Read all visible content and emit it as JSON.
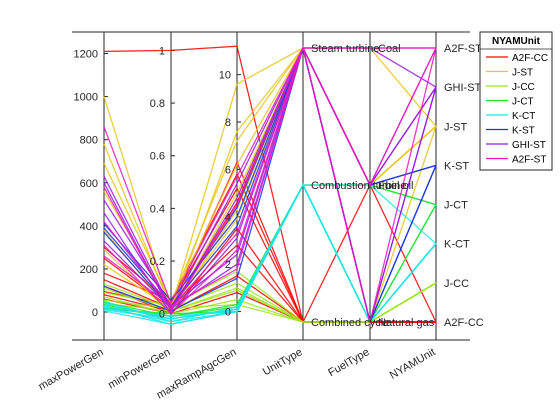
{
  "chart_data": {
    "type": "parallel_coordinates",
    "title": "",
    "coordinates": [
      "maxPowerGen",
      "minPowerGen",
      "maxRampAgcGen",
      "UnitType",
      "FuelType",
      "NYAMUnit"
    ],
    "axes": [
      {
        "name": "maxPowerGen",
        "kind": "numeric",
        "range": [
          -130,
          1300
        ],
        "ticks": [
          0,
          200,
          400,
          600,
          800,
          1000,
          1200
        ]
      },
      {
        "name": "minPowerGen",
        "kind": "numeric",
        "range": [
          -0.1,
          1.07
        ],
        "ticks": [
          0,
          0.2,
          0.4,
          0.6,
          0.8,
          1
        ]
      },
      {
        "name": "maxRampAgcGen",
        "kind": "numeric",
        "range": [
          -1.2,
          11.8
        ],
        "ticks": [
          0,
          2,
          4,
          6,
          8,
          10
        ]
      },
      {
        "name": "UnitType",
        "kind": "categorical",
        "categories": [
          "Combined cycle",
          "Combustion turbine",
          "Steam turbine"
        ]
      },
      {
        "name": "FuelType",
        "kind": "categorical",
        "categories": [
          "Natural gas",
          "Fuel oil",
          "Coal"
        ]
      },
      {
        "name": "NYAMUnit",
        "kind": "categorical",
        "categories": [
          "A2F-CC",
          "J-CC",
          "K-CT",
          "J-CT",
          "K-ST",
          "J-ST",
          "GHI-ST",
          "A2F-ST"
        ]
      }
    ],
    "legend": {
      "title": "NYAMUnit",
      "position": "top-right"
    },
    "groups": [
      {
        "name": "A2F-CC",
        "color": "#ff0000",
        "lines": [
          [
            1210,
            1.0,
            11.2,
            "Combined cycle",
            "Natural gas",
            "A2F-CC"
          ],
          [
            180,
            0.05,
            5.8,
            "Combined cycle",
            "Natural gas",
            "A2F-CC"
          ],
          [
            150,
            0.02,
            6.3,
            "Combined cycle",
            "Fuel oil",
            "A2F-CC"
          ],
          [
            120,
            0.0,
            3.5,
            "Combined cycle",
            "Natural gas",
            "A2F-CC"
          ],
          [
            95,
            0.03,
            2.8,
            "Combined cycle",
            "Natural gas",
            "A2F-CC"
          ],
          [
            80,
            0.01,
            1.5,
            "Combined cycle",
            "Natural gas",
            "A2F-CC"
          ],
          [
            60,
            0.0,
            0.8,
            "Combined cycle",
            "Natural gas",
            "A2F-CC"
          ],
          [
            250,
            0.02,
            4.6,
            "Steam turbine",
            "Natural gas",
            "A2F-CC"
          ],
          [
            300,
            0.04,
            5.2,
            "Combined cycle",
            "Natural gas",
            "A2F-CC"
          ]
        ]
      },
      {
        "name": "J-ST",
        "color": "#e6c619",
        "lines": [
          [
            1000,
            0.01,
            7.6,
            "Steam turbine",
            "Coal",
            "J-ST"
          ],
          [
            780,
            0.02,
            9.6,
            "Steam turbine",
            "Fuel oil",
            "J-ST"
          ],
          [
            560,
            0.03,
            6.2,
            "Steam turbine",
            "Fuel oil",
            "J-ST"
          ],
          [
            380,
            0.01,
            5.0,
            "Steam turbine",
            "Fuel oil",
            "J-ST"
          ],
          [
            290,
            0.0,
            4.3,
            "Steam turbine",
            "Fuel oil",
            "J-ST"
          ],
          [
            220,
            0.02,
            3.9,
            "Steam turbine",
            "Fuel oil",
            "J-ST"
          ],
          [
            690,
            0.04,
            7.2,
            "Steam turbine",
            "Natural gas",
            "J-ST"
          ]
        ]
      },
      {
        "name": "J-CC",
        "color": "#99e619",
        "lines": [
          [
            130,
            0.02,
            1.2,
            "Combined cycle",
            "Natural gas",
            "J-CC"
          ],
          [
            110,
            0.01,
            0.9,
            "Combined cycle",
            "Natural gas",
            "J-CC"
          ],
          [
            90,
            0.03,
            1.7,
            "Combined cycle",
            "Natural gas",
            "J-CC"
          ],
          [
            70,
            0.0,
            0.5,
            "Combined cycle",
            "Natural gas",
            "J-CC"
          ],
          [
            55,
            0.02,
            0.3,
            "Combined cycle",
            "Natural gas",
            "J-CC"
          ],
          [
            40,
            0.01,
            1.0,
            "Combined cycle",
            "Natural gas",
            "J-CC"
          ]
        ]
      },
      {
        "name": "J-CT",
        "color": "#19e633",
        "lines": [
          [
            45,
            -0.01,
            0.2,
            "Combustion turbine",
            "Fuel oil",
            "J-CT"
          ],
          [
            35,
            -0.02,
            0.1,
            "Combustion turbine",
            "Natural gas",
            "J-CT"
          ],
          [
            20,
            -0.01,
            0.3,
            "Combustion turbine",
            "Natural gas",
            "J-CT"
          ],
          [
            15,
            0.0,
            0.0,
            "Combustion turbine",
            "Fuel oil",
            "J-CT"
          ]
        ]
      },
      {
        "name": "K-CT",
        "color": "#19e6e6",
        "lines": [
          [
            50,
            -0.03,
            0.0,
            "Combustion turbine",
            "Natural gas",
            "K-CT"
          ],
          [
            40,
            -0.02,
            0.1,
            "Combustion turbine",
            "Natural gas",
            "K-CT"
          ],
          [
            30,
            -0.04,
            0.0,
            "Combustion turbine",
            "Natural gas",
            "K-CT"
          ],
          [
            20,
            -0.03,
            0.2,
            "Combustion turbine",
            "Fuel oil",
            "K-CT"
          ],
          [
            10,
            -0.02,
            0.1,
            "Combustion turbine",
            "Natural gas",
            "K-CT"
          ],
          [
            5,
            -0.04,
            0.0,
            "Combustion turbine",
            "Natural gas",
            "K-CT"
          ],
          [
            25,
            -0.01,
            0.0,
            "Combustion turbine",
            "Natural gas",
            "K-CT"
          ]
        ]
      },
      {
        "name": "K-ST",
        "color": "#1933e6",
        "lines": [
          [
            410,
            0.05,
            4.0,
            "Steam turbine",
            "Natural gas",
            "K-ST"
          ],
          [
            390,
            0.03,
            3.6,
            "Steam turbine",
            "Fuel oil",
            "K-ST"
          ],
          [
            370,
            0.02,
            4.4,
            "Steam turbine",
            "Natural gas",
            "K-ST"
          ],
          [
            120,
            0.01,
            1.4,
            "Steam turbine",
            "Fuel oil",
            "K-ST"
          ]
        ]
      },
      {
        "name": "GHI-ST",
        "color": "#9919e6",
        "lines": [
          [
            630,
            0.02,
            5.4,
            "Steam turbine",
            "Coal",
            "GHI-ST"
          ],
          [
            600,
            0.01,
            4.8,
            "Steam turbine",
            "Fuel oil",
            "GHI-ST"
          ],
          [
            520,
            0.03,
            2.4,
            "Steam turbine",
            "Natural gas",
            "GHI-ST"
          ],
          [
            460,
            0.0,
            3.1,
            "Steam turbine",
            "Natural gas",
            "GHI-ST"
          ],
          [
            330,
            0.02,
            2.0,
            "Steam turbine",
            "Fuel oil",
            "GHI-ST"
          ]
        ]
      },
      {
        "name": "A2F-ST",
        "color": "#e619bf",
        "lines": [
          [
            860,
            0.04,
            5.7,
            "Steam turbine",
            "Fuel oil",
            "A2F-ST"
          ],
          [
            580,
            0.01,
            4.5,
            "Steam turbine",
            "Coal",
            "A2F-ST"
          ],
          [
            420,
            0.02,
            3.3,
            "Steam turbine",
            "Fuel oil",
            "A2F-ST"
          ],
          [
            310,
            0.0,
            2.6,
            "Steam turbine",
            "Coal",
            "A2F-ST"
          ],
          [
            260,
            0.03,
            1.8,
            "Steam turbine",
            "Natural gas",
            "A2F-ST"
          ]
        ]
      }
    ]
  }
}
